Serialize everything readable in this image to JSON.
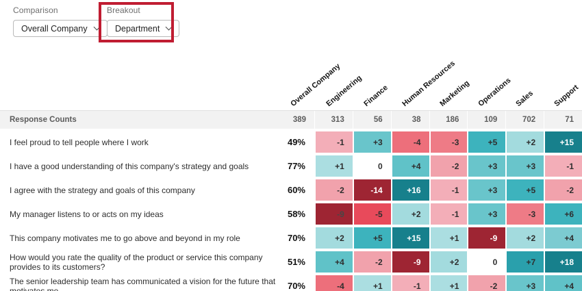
{
  "controls": {
    "comparison": {
      "label": "Comparison",
      "value": "Overall Company"
    },
    "breakout": {
      "label": "Breakout",
      "value": "Department"
    },
    "annotation_color": "#c01d32"
  },
  "table": {
    "type": "heatmap",
    "columns": [
      "Overall Company",
      "Engineering",
      "Finance",
      "Human Resources",
      "Marketing",
      "Operations",
      "Sales",
      "Support"
    ],
    "response_counts_label": "Response Counts",
    "response_counts": [
      "389",
      "313",
      "56",
      "38",
      "186",
      "109",
      "702",
      "71"
    ],
    "colors": {
      "positive_dark": "#17808c",
      "positive_mid": "#3db3bd",
      "positive_light": "#abdee1",
      "negative_dark": "#9e2533",
      "negative_mid": "#ed6f7b",
      "negative_light": "#f3aeb8",
      "zero": "#ffffff"
    },
    "rows": [
      {
        "question": "I feel proud to tell people where I work",
        "overall": "49%",
        "cells": [
          {
            "v": "-1",
            "bg": "#f3aeb8",
            "fg": "#2e2e2e"
          },
          {
            "v": "+3",
            "bg": "#69c5cb",
            "fg": "#2e2e2e"
          },
          {
            "v": "-4",
            "bg": "#ed6f7b",
            "fg": "#2e2e2e"
          },
          {
            "v": "-3",
            "bg": "#ee7b86",
            "fg": "#2e2e2e"
          },
          {
            "v": "+5",
            "bg": "#3db3bd",
            "fg": "#2e2e2e"
          },
          {
            "v": "+2",
            "bg": "#a3dbde",
            "fg": "#2e2e2e"
          },
          {
            "v": "+15",
            "bg": "#17808c",
            "fg": "#ffffff"
          }
        ]
      },
      {
        "question": "I have a good understanding of this company's strategy and goals",
        "overall": "77%",
        "cells": [
          {
            "v": "+1",
            "bg": "#abdee1",
            "fg": "#2e2e2e"
          },
          {
            "v": "0",
            "bg": "#ffffff",
            "fg": "#2e2e2e"
          },
          {
            "v": "+4",
            "bg": "#60c2c8",
            "fg": "#2e2e2e"
          },
          {
            "v": "-2",
            "bg": "#f1a2ac",
            "fg": "#2e2e2e"
          },
          {
            "v": "+3",
            "bg": "#69c5cb",
            "fg": "#2e2e2e"
          },
          {
            "v": "+3",
            "bg": "#69c5cb",
            "fg": "#2e2e2e"
          },
          {
            "v": "-1",
            "bg": "#f3aeb8",
            "fg": "#2e2e2e"
          }
        ]
      },
      {
        "question": "I agree with the strategy and goals of this company",
        "overall": "60%",
        "cells": [
          {
            "v": "-2",
            "bg": "#f1a2ac",
            "fg": "#2e2e2e"
          },
          {
            "v": "-14",
            "bg": "#9e2533",
            "fg": "#ffffff"
          },
          {
            "v": "+16",
            "bg": "#17808c",
            "fg": "#ffffff"
          },
          {
            "v": "-1",
            "bg": "#f3aeb8",
            "fg": "#2e2e2e"
          },
          {
            "v": "+3",
            "bg": "#69c5cb",
            "fg": "#2e2e2e"
          },
          {
            "v": "+5",
            "bg": "#3db3bd",
            "fg": "#2e2e2e"
          },
          {
            "v": "-2",
            "bg": "#f1a2ac",
            "fg": "#2e2e2e"
          }
        ]
      },
      {
        "question": "My manager listens to or acts on my ideas",
        "overall": "58%",
        "cells": [
          {
            "v": "-9",
            "bg": "#9e2533",
            "fg": "#474747"
          },
          {
            "v": "-5",
            "bg": "#e84a5b",
            "fg": "#2e2e2e"
          },
          {
            "v": "+2",
            "bg": "#a3dbde",
            "fg": "#2e2e2e"
          },
          {
            "v": "-1",
            "bg": "#f3aeb8",
            "fg": "#2e2e2e"
          },
          {
            "v": "+3",
            "bg": "#69c5cb",
            "fg": "#2e2e2e"
          },
          {
            "v": "-3",
            "bg": "#ee7b86",
            "fg": "#2e2e2e"
          },
          {
            "v": "+6",
            "bg": "#3db3bd",
            "fg": "#2e2e2e"
          }
        ]
      },
      {
        "question": "This company motivates me to go above and beyond in my role",
        "overall": "70%",
        "cells": [
          {
            "v": "+2",
            "bg": "#a3dbde",
            "fg": "#2e2e2e"
          },
          {
            "v": "+5",
            "bg": "#3db3bd",
            "fg": "#2e2e2e"
          },
          {
            "v": "+15",
            "bg": "#17808c",
            "fg": "#ffffff"
          },
          {
            "v": "+1",
            "bg": "#abdee1",
            "fg": "#2e2e2e"
          },
          {
            "v": "-9",
            "bg": "#9e2533",
            "fg": "#ffffff"
          },
          {
            "v": "+2",
            "bg": "#a3dbde",
            "fg": "#2e2e2e"
          },
          {
            "v": "+4",
            "bg": "#7ccbd1",
            "fg": "#2e2e2e"
          }
        ]
      },
      {
        "question": "How would you rate the quality of the product or service this company provides to its customers?",
        "overall": "51%",
        "cells": [
          {
            "v": "+4",
            "bg": "#60c2c8",
            "fg": "#2e2e2e"
          },
          {
            "v": "-2",
            "bg": "#f1a2ac",
            "fg": "#2e2e2e"
          },
          {
            "v": "-9",
            "bg": "#9e2533",
            "fg": "#ffffff"
          },
          {
            "v": "+2",
            "bg": "#a3dbde",
            "fg": "#2e2e2e"
          },
          {
            "v": "0",
            "bg": "#ffffff",
            "fg": "#2e2e2e"
          },
          {
            "v": "+7",
            "bg": "#2aa0ac",
            "fg": "#2e2e2e"
          },
          {
            "v": "+18",
            "bg": "#17808c",
            "fg": "#ffffff"
          }
        ]
      },
      {
        "question": "The senior leadership team has communicated a vision for the future that motivates me",
        "overall": "70%",
        "cells": [
          {
            "v": "-4",
            "bg": "#ed6f7b",
            "fg": "#2e2e2e"
          },
          {
            "v": "+1",
            "bg": "#abdee1",
            "fg": "#2e2e2e"
          },
          {
            "v": "-1",
            "bg": "#f3aeb8",
            "fg": "#2e2e2e"
          },
          {
            "v": "+1",
            "bg": "#abdee1",
            "fg": "#2e2e2e"
          },
          {
            "v": "-2",
            "bg": "#f1a2ac",
            "fg": "#2e2e2e"
          },
          {
            "v": "+3",
            "bg": "#69c5cb",
            "fg": "#2e2e2e"
          },
          {
            "v": "+4",
            "bg": "#60c2c8",
            "fg": "#2e2e2e"
          }
        ]
      }
    ]
  }
}
